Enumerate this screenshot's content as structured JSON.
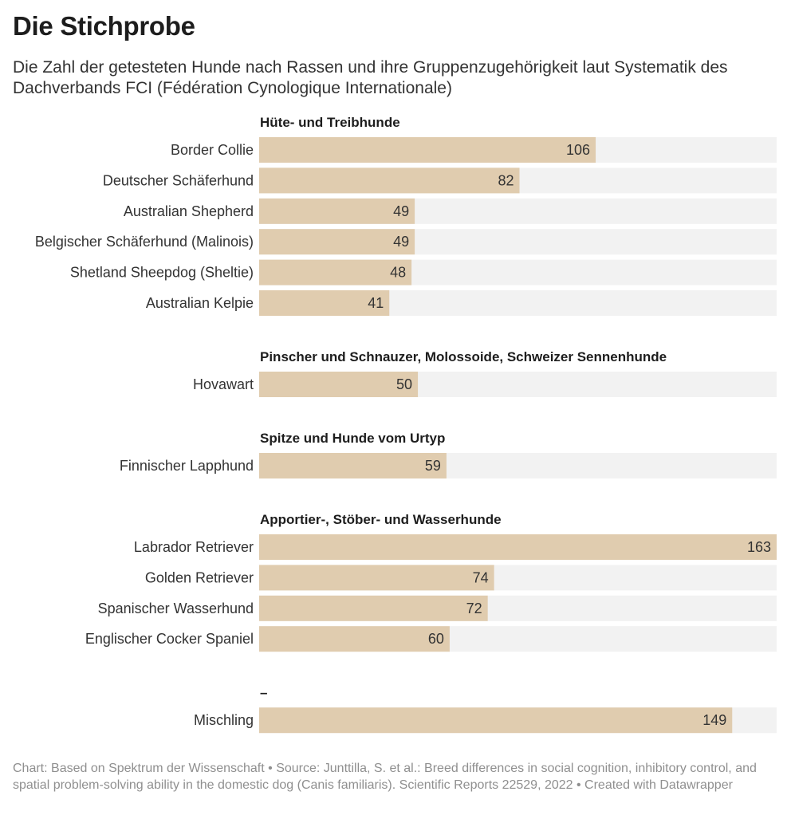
{
  "title": "Die Stichprobe",
  "subtitle": "Die Zahl der getesteten Hunde nach Rassen und ihre Gruppenzugehörigkeit laut Systematik des Dachverbands FCI (Fédération Cynologique Internationale)",
  "footer": "Chart: Based on Spektrum der Wissenschaft • Source: Junttilla, S. et al.: Breed differences in social cognition, inhibitory control, and spatial problem-solving ability in the domestic dog (Canis familiaris). Scientific Reports 22529, 2022 • Created with Datawrapper",
  "colors": {
    "bar": "#e0ccaf",
    "track": "#f2f2f2",
    "text": "#333333",
    "footer": "#8f8f8f"
  },
  "chart_data": {
    "type": "bar",
    "orientation": "horizontal",
    "xlim": [
      0,
      163
    ],
    "grid": false,
    "groups": [
      {
        "name": "Hüte- und Treibhunde",
        "categories": [
          "Border Collie",
          "Deutscher Schäferhund",
          "Australian Shepherd",
          "Belgischer Schäferhund (Malinois)",
          "Shetland Sheepdog (Sheltie)",
          "Australian Kelpie"
        ],
        "values": [
          106,
          82,
          49,
          49,
          48,
          41
        ]
      },
      {
        "name": "Pinscher und Schnauzer, Molossoide, Schweizer Sennenhunde",
        "categories": [
          "Hovawart"
        ],
        "values": [
          50
        ]
      },
      {
        "name": "Spitze und Hunde vom Urtyp",
        "categories": [
          "Finnischer Lapphund"
        ],
        "values": [
          59
        ]
      },
      {
        "name": "Apportier-, Stöber- und Wasserhunde",
        "categories": [
          "Labrador Retriever",
          "Golden Retriever",
          "Spanischer Wasserhund",
          "Englischer Cocker Spaniel"
        ],
        "values": [
          163,
          74,
          72,
          60
        ]
      },
      {
        "name": "–",
        "categories": [
          "Mischling"
        ],
        "values": [
          149
        ]
      }
    ]
  }
}
